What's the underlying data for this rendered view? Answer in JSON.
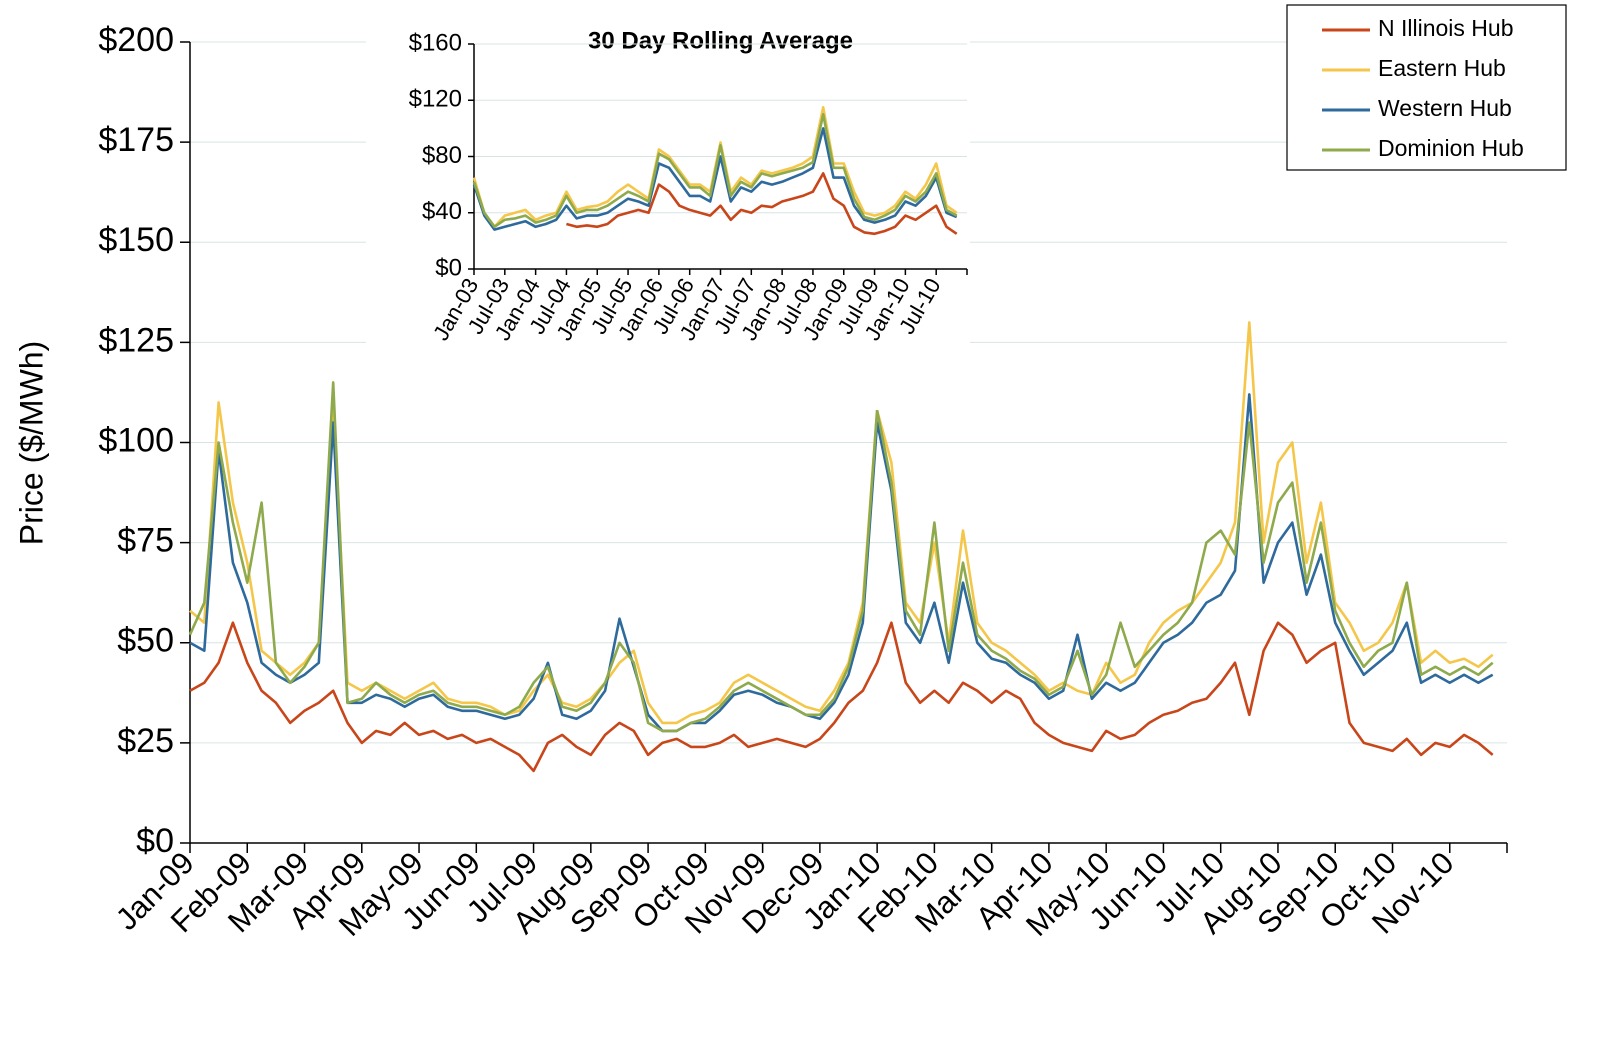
{
  "chart_data": [
    {
      "type": "line",
      "y_label": "Price ($/MWh)",
      "ylim": [
        0,
        200
      ],
      "yticks": [
        {
          "value": 0,
          "label": "$0"
        },
        {
          "value": 25,
          "label": "$25"
        },
        {
          "value": 50,
          "label": "$50"
        },
        {
          "value": 75,
          "label": "$75"
        },
        {
          "value": 100,
          "label": "$100"
        },
        {
          "value": 125,
          "label": "$125"
        },
        {
          "value": 150,
          "label": "$150"
        },
        {
          "value": 175,
          "label": "$175"
        },
        {
          "value": 200,
          "label": "$200"
        }
      ],
      "grid": true,
      "legend": "upper right",
      "categories": [
        "Jan-09",
        null,
        null,
        null,
        "Feb-09",
        null,
        null,
        null,
        "Mar-09",
        null,
        null,
        null,
        "Apr-09",
        null,
        null,
        null,
        "May-09",
        null,
        null,
        null,
        "Jun-09",
        null,
        null,
        null,
        "Jul-09",
        null,
        null,
        null,
        "Aug-09",
        null,
        null,
        null,
        "Sep-09",
        null,
        null,
        null,
        "Oct-09",
        null,
        null,
        null,
        "Nov-09",
        null,
        null,
        null,
        "Dec-09",
        null,
        null,
        null,
        "Jan-10",
        null,
        null,
        null,
        "Feb-10",
        null,
        null,
        null,
        "Mar-10",
        null,
        null,
        null,
        "Apr-10",
        null,
        null,
        null,
        "May-10",
        null,
        null,
        null,
        "Jun-10",
        null,
        null,
        null,
        "Jul-10",
        null,
        null,
        null,
        "Aug-10",
        null,
        null,
        null,
        "Sep-10",
        null,
        null,
        null,
        "Oct-10",
        null,
        null,
        null,
        "Nov-10",
        null,
        null,
        null
      ],
      "series": [
        {
          "name": "N Illinois Hub",
          "color": "#c8461a",
          "values": [
            38,
            40,
            45,
            55,
            45,
            38,
            35,
            30,
            33,
            35,
            38,
            30,
            25,
            28,
            27,
            30,
            27,
            28,
            26,
            27,
            25,
            26,
            24,
            22,
            18,
            25,
            27,
            24,
            22,
            27,
            30,
            28,
            22,
            25,
            26,
            24,
            24,
            25,
            27,
            24,
            25,
            26,
            25,
            24,
            26,
            30,
            35,
            38,
            45,
            55,
            40,
            35,
            38,
            35,
            40,
            38,
            35,
            38,
            36,
            30,
            27,
            25,
            24,
            23,
            28,
            26,
            27,
            30,
            32,
            33,
            35,
            36,
            40,
            45,
            32,
            48,
            55,
            52,
            45,
            48,
            50,
            30,
            25,
            24,
            23,
            26,
            22,
            25,
            24,
            27,
            25,
            22
          ]
        },
        {
          "name": "Eastern Hub",
          "color": "#f4c64a",
          "values": [
            58,
            55,
            110,
            85,
            70,
            48,
            45,
            42,
            45,
            50,
            110,
            40,
            38,
            40,
            38,
            36,
            38,
            40,
            36,
            35,
            35,
            34,
            32,
            33,
            38,
            42,
            35,
            34,
            36,
            40,
            45,
            48,
            35,
            30,
            30,
            32,
            33,
            35,
            40,
            42,
            40,
            38,
            36,
            34,
            33,
            38,
            45,
            60,
            108,
            95,
            60,
            55,
            75,
            50,
            78,
            55,
            50,
            48,
            45,
            42,
            38,
            40,
            38,
            37,
            45,
            40,
            42,
            50,
            55,
            58,
            60,
            65,
            70,
            80,
            130,
            75,
            95,
            100,
            70,
            85,
            60,
            55,
            48,
            50,
            55,
            65,
            45,
            48,
            45,
            46,
            44,
            47
          ]
        },
        {
          "name": "Western Hub",
          "color": "#2e6a9c",
          "values": [
            50,
            48,
            98,
            70,
            60,
            45,
            42,
            40,
            42,
            45,
            105,
            35,
            35,
            37,
            36,
            34,
            36,
            37,
            34,
            33,
            33,
            32,
            31,
            32,
            36,
            45,
            32,
            31,
            33,
            38,
            56,
            44,
            32,
            28,
            28,
            30,
            30,
            33,
            37,
            38,
            37,
            35,
            34,
            32,
            31,
            35,
            42,
            55,
            105,
            88,
            55,
            50,
            60,
            45,
            65,
            50,
            46,
            45,
            42,
            40,
            36,
            38,
            52,
            36,
            40,
            38,
            40,
            45,
            50,
            52,
            55,
            60,
            62,
            68,
            112,
            65,
            75,
            80,
            62,
            72,
            55,
            48,
            42,
            45,
            48,
            55,
            40,
            42,
            40,
            42,
            40,
            42
          ]
        },
        {
          "name": "Dominion Hub",
          "color": "#8eaa4c",
          "values": [
            52,
            60,
            100,
            80,
            65,
            85,
            45,
            40,
            44,
            50,
            115,
            35,
            36,
            40,
            37,
            35,
            37,
            38,
            35,
            34,
            34,
            33,
            32,
            34,
            40,
            44,
            34,
            33,
            35,
            40,
            50,
            45,
            30,
            28,
            28,
            30,
            31,
            34,
            38,
            40,
            38,
            36,
            34,
            32,
            32,
            36,
            44,
            58,
            108,
            90,
            58,
            52,
            80,
            48,
            70,
            52,
            48,
            46,
            43,
            41,
            37,
            39,
            48,
            37,
            42,
            55,
            44,
            48,
            52,
            55,
            60,
            75,
            78,
            72,
            105,
            70,
            85,
            90,
            65,
            80,
            58,
            50,
            44,
            48,
            50,
            65,
            42,
            44,
            42,
            44,
            42,
            45
          ]
        }
      ]
    },
    {
      "type": "line",
      "title": "30 Day Rolling Average",
      "ylim": [
        0,
        160
      ],
      "yticks": [
        {
          "value": 0,
          "label": "$0"
        },
        {
          "value": 40,
          "label": "$40"
        },
        {
          "value": 80,
          "label": "$80"
        },
        {
          "value": 120,
          "label": "$120"
        },
        {
          "value": 160,
          "label": "$160"
        }
      ],
      "grid": true,
      "categories": [
        "Jan-03",
        null,
        null,
        "Jul-03",
        null,
        null,
        "Jan-04",
        null,
        null,
        "Jul-04",
        null,
        null,
        "Jan-05",
        null,
        null,
        "Jul-05",
        null,
        null,
        "Jan-06",
        null,
        null,
        "Jul-06",
        null,
        null,
        "Jan-07",
        null,
        null,
        "Jul-07",
        null,
        null,
        "Jan-08",
        null,
        null,
        "Jul-08",
        null,
        null,
        "Jan-09",
        null,
        null,
        "Jul-09",
        null,
        null,
        "Jan-10",
        null,
        null,
        "Jul-10",
        null,
        null
      ],
      "series": [
        {
          "color": "#c8461a",
          "values": [
            null,
            null,
            null,
            null,
            null,
            null,
            null,
            null,
            null,
            32,
            30,
            31,
            30,
            32,
            38,
            40,
            42,
            40,
            60,
            55,
            45,
            42,
            40,
            38,
            45,
            35,
            42,
            40,
            45,
            44,
            48,
            50,
            52,
            55,
            68,
            50,
            45,
            30,
            26,
            25,
            27,
            30,
            38,
            35,
            40,
            45,
            30,
            25
          ]
        },
        {
          "color": "#f4c64a",
          "values": [
            65,
            40,
            30,
            38,
            40,
            42,
            35,
            38,
            40,
            55,
            42,
            44,
            45,
            48,
            55,
            60,
            55,
            50,
            85,
            80,
            70,
            60,
            60,
            55,
            90,
            55,
            65,
            60,
            70,
            68,
            70,
            72,
            75,
            80,
            115,
            75,
            75,
            55,
            40,
            38,
            40,
            45,
            55,
            50,
            60,
            75,
            45,
            40
          ]
        },
        {
          "color": "#2e6a9c",
          "values": [
            60,
            38,
            28,
            30,
            32,
            34,
            30,
            32,
            35,
            45,
            36,
            38,
            38,
            40,
            45,
            50,
            48,
            45,
            75,
            72,
            62,
            52,
            52,
            48,
            80,
            48,
            58,
            55,
            62,
            60,
            62,
            65,
            68,
            72,
            100,
            65,
            65,
            45,
            35,
            33,
            35,
            38,
            48,
            45,
            52,
            65,
            40,
            37
          ]
        },
        {
          "color": "#8eaa4c",
          "values": [
            62,
            40,
            30,
            35,
            36,
            38,
            33,
            35,
            38,
            52,
            40,
            42,
            42,
            45,
            50,
            55,
            52,
            48,
            82,
            78,
            68,
            58,
            58,
            52,
            88,
            52,
            62,
            58,
            68,
            66,
            68,
            70,
            72,
            76,
            110,
            72,
            72,
            50,
            37,
            35,
            38,
            42,
            52,
            48,
            55,
            68,
            42,
            38
          ]
        }
      ]
    }
  ]
}
